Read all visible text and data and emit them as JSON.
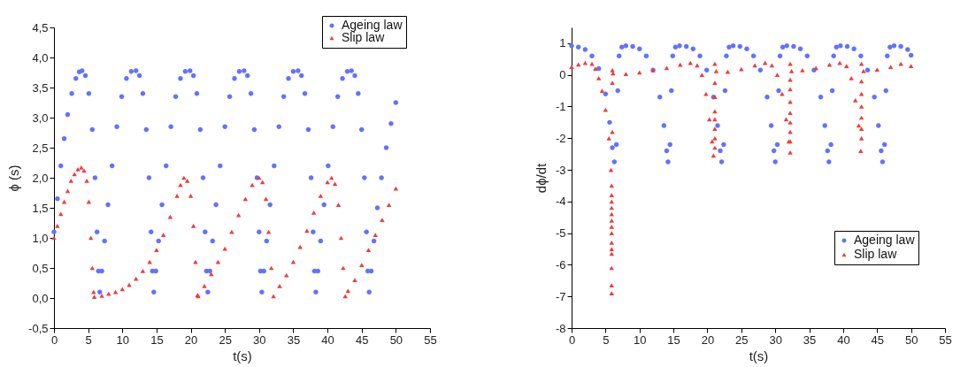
{
  "chart_data": [
    {
      "type": "scatter",
      "xlabel": "t(s)",
      "ylabel": "ϕ (s)",
      "xlim": [
        0,
        55
      ],
      "xticks": [
        0,
        5,
        10,
        15,
        20,
        25,
        30,
        35,
        40,
        45,
        50,
        55
      ],
      "ylim": [
        -0.5,
        4.5
      ],
      "yticks": [
        {
          "value": -0.5,
          "label": "-0,5"
        },
        {
          "value": 0,
          "label": "0,0"
        },
        {
          "value": 0.5,
          "label": "0,5"
        },
        {
          "value": 1,
          "label": "1,0"
        },
        {
          "value": 1.5,
          "label": "1,5"
        },
        {
          "value": 2,
          "label": "2,0"
        },
        {
          "value": 2.5,
          "label": "2,5"
        },
        {
          "value": 3,
          "label": "3,0"
        },
        {
          "value": 3.5,
          "label": "3,5"
        },
        {
          "value": 4,
          "label": "4,0"
        },
        {
          "value": 4.5,
          "label": "4,5"
        }
      ],
      "legend": "top right",
      "grid": false,
      "series": [
        {
          "name": "Ageing law",
          "color": "#6272ff",
          "marker": "circle",
          "x": [
            0,
            0.5,
            1,
            1.5,
            2,
            2.6,
            3.2,
            3.7,
            4.1,
            4.6,
            5.1,
            5.6,
            6,
            6.3,
            6.5,
            6.7,
            7,
            7.4,
            7.9,
            8.5,
            9.2,
            9.9,
            10.6,
            11.3,
            12,
            12.5,
            13,
            13.5,
            13.9,
            14.2,
            14.4,
            14.6,
            14.9,
            15.3,
            15.8,
            16.4,
            17.1,
            17.8,
            18.5,
            19.2,
            19.9,
            20.4,
            20.9,
            21.4,
            21.8,
            22.1,
            22.3,
            22.5,
            22.8,
            23.2,
            23.7,
            24.3,
            25,
            25.7,
            26.4,
            27.1,
            27.8,
            28.3,
            28.8,
            29.3,
            29.7,
            30,
            30.2,
            30.4,
            30.7,
            31.1,
            31.6,
            32.2,
            32.9,
            33.6,
            34.3,
            35,
            35.7,
            36.2,
            36.7,
            37.2,
            37.6,
            37.9,
            38.1,
            38.3,
            38.6,
            39,
            39.5,
            40.1,
            40.8,
            41.5,
            42.2,
            42.9,
            43.5,
            44,
            44.5,
            45,
            45.4,
            45.7,
            45.9,
            46.1,
            46.4,
            46.8,
            47.3,
            47.9,
            48.6,
            49.3,
            50
          ],
          "values": [
            1.1,
            1.65,
            2.2,
            2.65,
            3.05,
            3.4,
            3.65,
            3.76,
            3.78,
            3.7,
            3.4,
            2.8,
            2,
            1.1,
            0.45,
            0.1,
            0.45,
            0.95,
            1.55,
            2.2,
            2.85,
            3.35,
            3.65,
            3.77,
            3.78,
            3.7,
            3.4,
            2.8,
            2,
            1.1,
            0.45,
            0.1,
            0.45,
            0.95,
            1.55,
            2.2,
            2.85,
            3.35,
            3.65,
            3.77,
            3.78,
            3.7,
            3.4,
            2.8,
            2,
            1.1,
            0.45,
            0.1,
            0.45,
            0.95,
            1.55,
            2.2,
            2.85,
            3.35,
            3.65,
            3.77,
            3.78,
            3.7,
            3.4,
            2.8,
            2,
            1.1,
            0.45,
            0.1,
            0.45,
            0.95,
            1.55,
            2.2,
            2.85,
            3.35,
            3.65,
            3.77,
            3.78,
            3.7,
            3.4,
            2.8,
            2,
            1.1,
            0.45,
            0.1,
            0.45,
            0.95,
            1.55,
            2.2,
            2.85,
            3.35,
            3.65,
            3.77,
            3.78,
            3.7,
            3.4,
            2.8,
            2,
            1.1,
            0.45,
            0.1,
            0.45,
            0.95,
            1.5,
            2,
            2.5,
            2.9,
            3.25
          ]
        },
        {
          "name": "Slip law",
          "color": "#f03c3c",
          "marker": "triangle",
          "x": [
            0,
            0.5,
            1,
            1.5,
            2,
            2.5,
            3,
            3.5,
            4,
            4.4,
            4.8,
            5.1,
            5.4,
            5.6,
            5.8,
            5.9,
            7,
            8,
            9,
            10,
            11,
            12,
            13,
            14,
            15,
            16,
            17,
            18,
            18.5,
            19,
            19.5,
            20,
            20.4,
            20.7,
            21,
            21.1,
            22,
            23,
            24,
            25,
            26,
            27,
            28,
            29,
            30,
            30.5,
            31,
            31.4,
            31.8,
            32.1,
            33,
            34,
            35,
            36,
            37,
            38,
            39,
            40,
            40.6,
            41.1,
            41.6,
            42,
            42.3,
            42.6,
            43,
            44,
            45,
            46,
            47,
            48,
            49,
            50
          ],
          "values": [
            1,
            1.2,
            1.4,
            1.6,
            1.78,
            1.95,
            2.06,
            2.14,
            2.17,
            2.12,
            1.95,
            1.6,
            1,
            0.5,
            0.1,
            0.02,
            0.04,
            0.07,
            0.1,
            0.15,
            0.22,
            0.32,
            0.45,
            0.6,
            0.8,
            1.05,
            1.35,
            1.7,
            1.88,
            2,
            1.95,
            1.7,
            1.2,
            0.6,
            0.05,
            0.03,
            0.2,
            0.4,
            0.6,
            0.82,
            1.1,
            1.38,
            1.65,
            1.88,
            2,
            1.93,
            1.65,
            1.1,
            0.5,
            0.03,
            0.2,
            0.38,
            0.6,
            0.85,
            1.12,
            1.42,
            1.7,
            1.93,
            2,
            1.9,
            1.55,
            1,
            0.5,
            0.03,
            0.12,
            0.3,
            0.55,
            0.8,
            1.05,
            1.3,
            1.55,
            1.82
          ]
        }
      ]
    },
    {
      "type": "scatter",
      "xlabel": "t(s)",
      "ylabel": "dϕ/dt",
      "xlim": [
        0,
        55
      ],
      "xticks": [
        0,
        5,
        10,
        15,
        20,
        25,
        30,
        35,
        40,
        45,
        50,
        55
      ],
      "ylim": [
        -8,
        1.5
      ],
      "yticks": [
        -8,
        -7,
        -6,
        -5,
        -4,
        -3,
        -2,
        -1,
        0,
        1
      ],
      "legend": "right",
      "grid": false,
      "series": [
        {
          "name": "Ageing law",
          "color": "#6272ff",
          "marker": "circle",
          "x": [
            0,
            1,
            2,
            3,
            4,
            5,
            5.6,
            6,
            6.3,
            6.6,
            6.8,
            7,
            7.4,
            8,
            9,
            10,
            11,
            12,
            13,
            13.6,
            14,
            14.2,
            14.5,
            14.7,
            14.9,
            15.3,
            15.9,
            16.9,
            17.9,
            18.9,
            19.9,
            20.9,
            21.5,
            21.9,
            22.1,
            22.4,
            22.6,
            22.8,
            23.2,
            23.8,
            24.8,
            25.8,
            26.8,
            27.8,
            28.8,
            29.4,
            29.8,
            30,
            30.3,
            30.5,
            30.7,
            31.1,
            31.7,
            32.7,
            33.7,
            34.7,
            35.7,
            36.7,
            37.3,
            37.7,
            37.9,
            38.2,
            38.4,
            38.6,
            39,
            39.6,
            40.6,
            41.6,
            42.6,
            43.6,
            44.6,
            45.2,
            45.6,
            45.8,
            46.1,
            46.3,
            46.5,
            46.9,
            47.5,
            48.5,
            49.5,
            50
          ],
          "values": [
            0.92,
            0.88,
            0.8,
            0.6,
            0.2,
            -0.6,
            -1.5,
            -2.3,
            -2.75,
            -2.2,
            -0.5,
            0.6,
            0.88,
            0.92,
            0.9,
            0.82,
            0.6,
            0.15,
            -0.7,
            -1.6,
            -2.4,
            -2.75,
            -2.2,
            -0.5,
            0.6,
            0.88,
            0.92,
            0.9,
            0.82,
            0.6,
            0.15,
            -0.7,
            -1.6,
            -2.4,
            -2.75,
            -2.2,
            -0.5,
            0.6,
            0.88,
            0.92,
            0.9,
            0.82,
            0.6,
            0.15,
            -0.7,
            -1.6,
            -2.4,
            -2.75,
            -2.2,
            -0.5,
            0.6,
            0.88,
            0.92,
            0.9,
            0.82,
            0.6,
            0.15,
            -0.7,
            -1.6,
            -2.4,
            -2.75,
            -2.2,
            -0.5,
            0.6,
            0.88,
            0.92,
            0.9,
            0.82,
            0.6,
            0.15,
            -0.7,
            -1.6,
            -2.4,
            -2.75,
            -2.2,
            -0.5,
            0.6,
            0.88,
            0.92,
            0.9,
            0.8,
            0.62
          ]
        },
        {
          "name": "Slip law",
          "color": "#f03c3c",
          "marker": "triangle",
          "x": [
            0,
            1,
            2,
            3,
            3.5,
            4,
            4.5,
            5,
            5.5,
            5.8,
            5.9,
            5.9,
            5.9,
            5.9,
            5.9,
            5.9,
            5.9,
            5.9,
            5.9,
            5.9,
            5.9,
            5.9,
            5.9,
            5.9,
            6,
            6,
            6,
            6.1,
            8,
            10,
            12,
            14,
            16,
            17.5,
            18.5,
            19.2,
            19.8,
            20.3,
            20.7,
            20.9,
            21.1,
            21.1,
            21.1,
            21.1,
            21.1,
            21.1,
            21.1,
            21.1,
            21.3,
            23,
            25,
            27,
            28.5,
            29.5,
            30.3,
            31,
            31.6,
            32,
            32.2,
            32.2,
            32.2,
            32.2,
            32.2,
            32.2,
            32.2,
            32.2,
            32.2,
            32.4,
            34,
            36,
            38,
            39.5,
            40.5,
            41.2,
            41.8,
            42.3,
            42.6,
            42.7,
            42.7,
            42.7,
            42.7,
            42.7,
            42.7,
            42.7,
            43,
            45,
            47,
            48.5,
            50
          ],
          "values": [
            0.25,
            0.33,
            0.38,
            0.35,
            0.2,
            -0.1,
            -0.5,
            -1.1,
            -2,
            -3,
            -3.5,
            -3.8,
            -4,
            -4.2,
            -4.4,
            -4.6,
            -4.8,
            -5,
            -5.3,
            -5.5,
            -5.65,
            -6.1,
            -6.65,
            -6.9,
            -1.8,
            -0.25,
            0.15,
            0.05,
            0.03,
            0.08,
            0.15,
            0.22,
            0.32,
            0.38,
            0.3,
            0,
            -0.6,
            -1.4,
            -2.1,
            -2.55,
            -2.3,
            -2,
            -1.7,
            -1.4,
            -1.15,
            -0.7,
            -0.25,
            0.35,
            0.12,
            0.1,
            0.18,
            0.3,
            0.38,
            0.3,
            0,
            -0.6,
            -1.4,
            -2.1,
            -2.45,
            -2.1,
            -1.8,
            -1.5,
            -1.2,
            -0.85,
            -0.45,
            -0.15,
            0.35,
            0.12,
            0.15,
            0.22,
            0.32,
            0.38,
            0.28,
            -0.1,
            -0.8,
            -1.6,
            -2.4,
            -2,
            -1.7,
            -1.35,
            -1,
            -0.6,
            -0.2,
            0.35,
            0.12,
            0.17,
            0.25,
            0.35,
            0.28
          ]
        }
      ]
    }
  ]
}
